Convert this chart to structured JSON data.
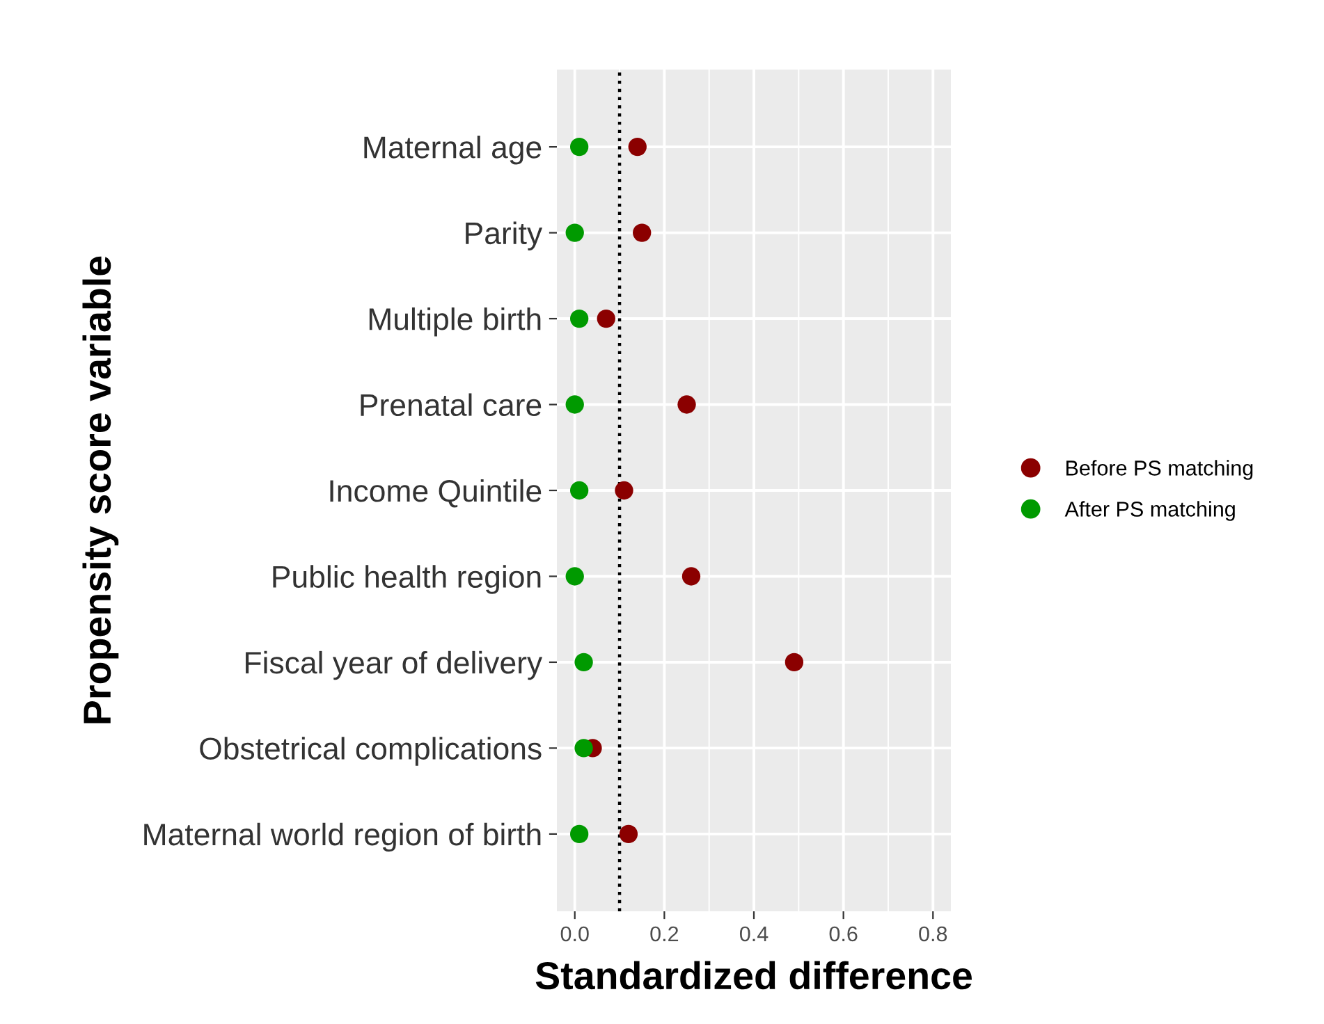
{
  "chart_data": {
    "type": "scatter",
    "xlabel": "Standardized difference",
    "ylabel": "Propensity score variable",
    "categories": [
      "Maternal age",
      "Parity",
      "Multiple birth",
      "Prenatal care",
      "Income Quintile",
      "Public health region",
      "Fiscal year of delivery",
      "Obstetrical complications",
      "Maternal world region of birth"
    ],
    "orientation": "horizontal",
    "series": [
      {
        "name": "Before PS matching",
        "color": "#8b0000",
        "values": [
          0.14,
          0.15,
          0.07,
          0.25,
          0.11,
          0.26,
          0.49,
          0.04,
          0.12
        ]
      },
      {
        "name": "After PS matching",
        "color": "#009a00",
        "values": [
          0.01,
          0.0,
          0.01,
          0.0,
          0.01,
          0.0,
          0.02,
          0.02,
          0.01
        ]
      }
    ],
    "xlim": [
      -0.04,
      0.84
    ],
    "xticks": [
      {
        "value": 0,
        "label": "0.0"
      },
      0.2,
      0.4,
      0.6,
      0.8
    ],
    "ref_lines": [
      {
        "axis": "x",
        "value": 0.1,
        "line_style": "dotted",
        "color": "#000000"
      }
    ],
    "grid": true,
    "legend": "right",
    "marker": "circle"
  }
}
